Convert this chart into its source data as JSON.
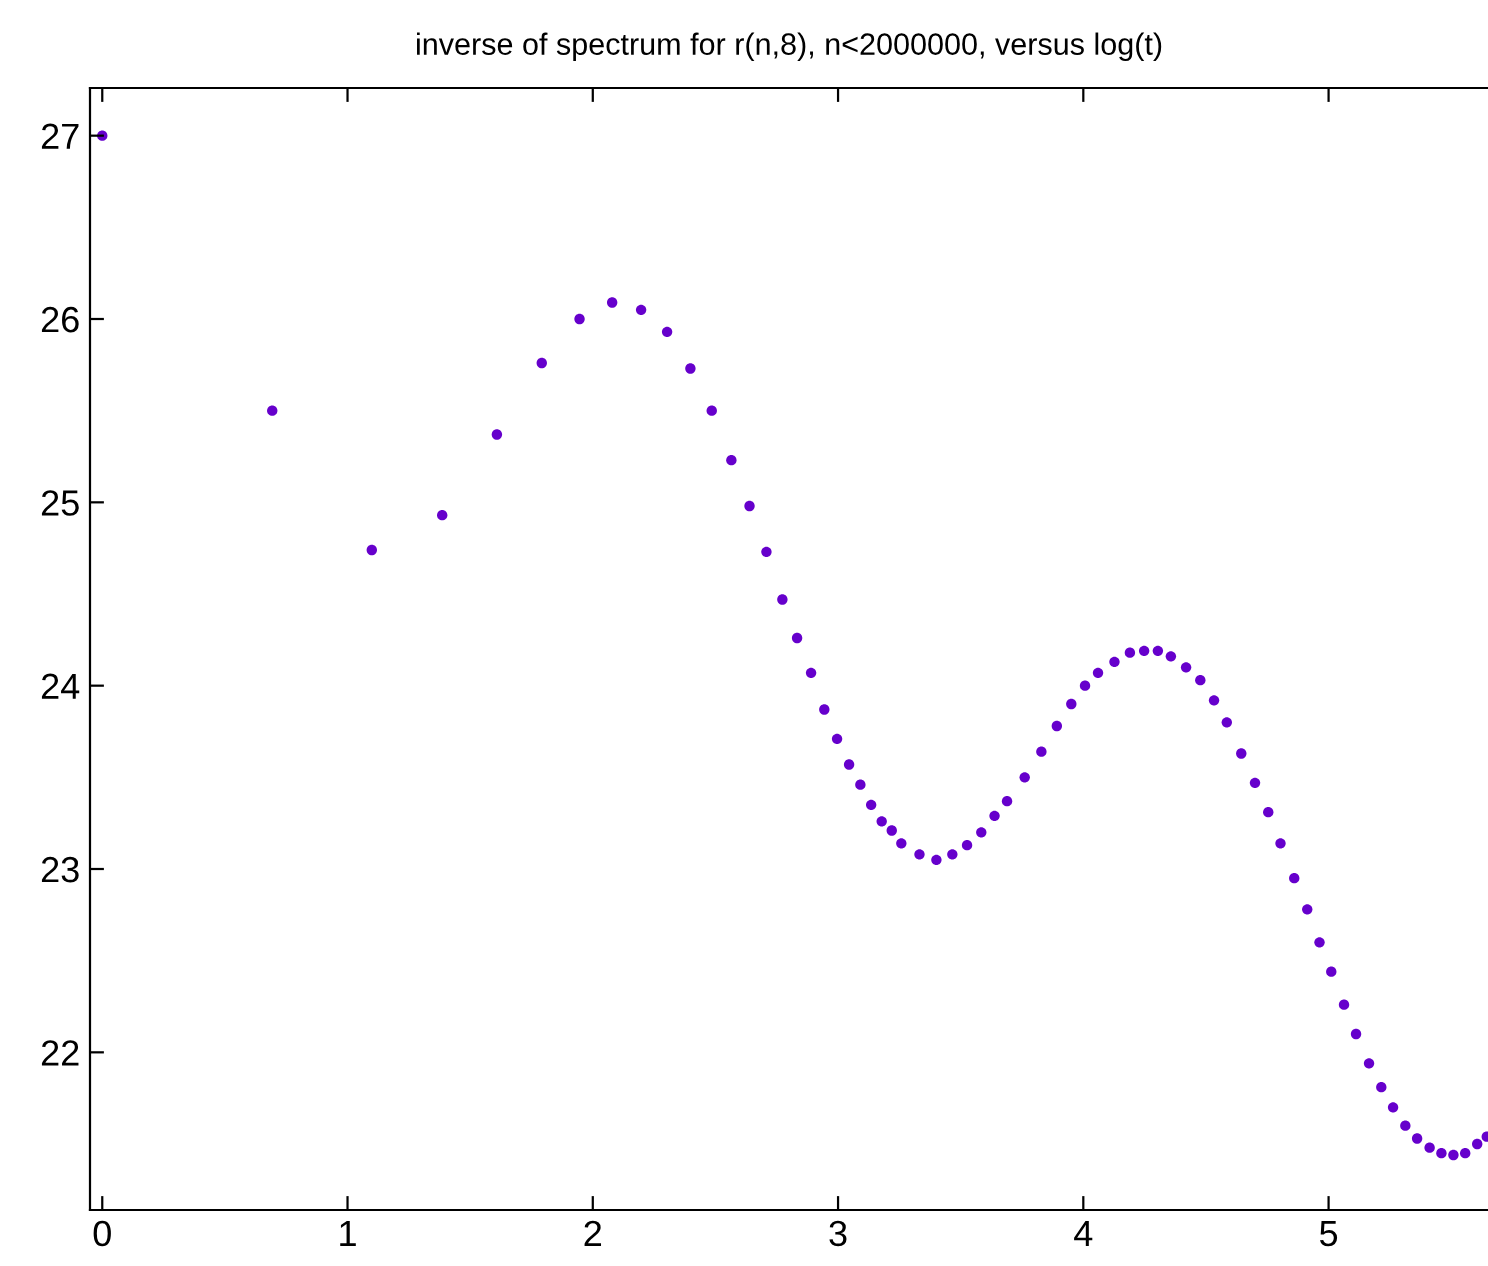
{
  "chart_data": {
    "type": "scatter",
    "title": "inverse of spectrum for r(n,8), n<2000000, versus log(t)",
    "x": [
      0,
      0.693,
      1.099,
      1.386,
      1.609,
      1.792,
      1.946,
      2.079,
      2.197,
      2.303,
      2.398,
      2.485,
      2.565,
      2.639,
      2.708,
      2.773,
      2.833,
      2.89,
      2.944,
      2.996,
      3.045,
      3.091,
      3.135,
      3.178,
      3.219,
      3.258,
      3.332,
      3.401,
      3.466,
      3.526,
      3.584,
      3.638,
      3.689,
      3.761,
      3.829,
      3.892,
      3.951,
      4.007,
      4.06,
      4.127,
      4.19,
      4.248,
      4.304,
      4.357,
      4.419,
      4.477,
      4.533,
      4.585,
      4.644,
      4.7,
      4.754,
      4.804,
      4.86,
      4.913,
      4.963,
      5.011,
      5.063,
      5.112,
      5.165,
      5.215,
      5.263,
      5.313,
      5.361,
      5.412,
      5.46,
      5.509,
      5.557,
      5.606,
      5.645
    ],
    "series": [
      {
        "color": "#6600cc",
        "values": [
          27.0,
          25.5,
          24.74,
          24.93,
          25.37,
          25.76,
          26.0,
          26.09,
          26.05,
          25.93,
          25.73,
          25.5,
          25.23,
          24.98,
          24.73,
          24.47,
          24.26,
          24.07,
          23.87,
          23.71,
          23.57,
          23.46,
          23.35,
          23.26,
          23.21,
          23.14,
          23.08,
          23.05,
          23.08,
          23.13,
          23.2,
          23.29,
          23.37,
          23.5,
          23.64,
          23.78,
          23.9,
          24.0,
          24.07,
          24.13,
          24.18,
          24.19,
          24.19,
          24.16,
          24.1,
          24.03,
          23.92,
          23.8,
          23.63,
          23.47,
          23.31,
          23.14,
          22.95,
          22.78,
          22.6,
          22.44,
          22.26,
          22.1,
          21.94,
          21.81,
          21.7,
          21.6,
          21.53,
          21.48,
          21.45,
          21.44,
          21.45,
          21.5,
          21.54
        ]
      }
    ],
    "marker": "circle",
    "xlim": [
      -0.05,
      5.65
    ],
    "ylim": [
      21.14,
      27.26
    ],
    "xticks": [
      0,
      1,
      2,
      3,
      4,
      5
    ],
    "yticks": [
      22,
      23,
      24,
      25,
      26,
      27
    ]
  }
}
